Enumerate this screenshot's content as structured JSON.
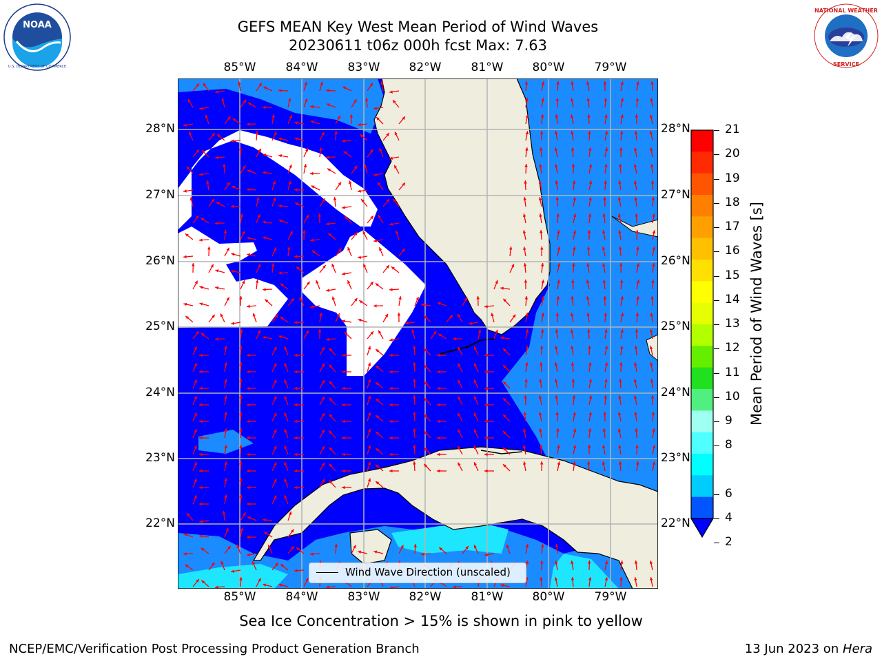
{
  "title_line1": "GEFS MEAN Key West Mean Period of Wind Waves",
  "title_line2": "20230611 t06z 000h fcst   Max: 7.63",
  "logos": {
    "noaa": {
      "text": "NOAA",
      "ring_text": "NATIONAL OCEANIC AND ATMOSPHERIC ADMINISTRATION · U.S. DEPARTMENT OF COMMERCE"
    },
    "nws": {
      "ring_text": "NATIONAL WEATHER SERVICE"
    }
  },
  "map": {
    "lon_labels": [
      "85°W",
      "84°W",
      "83°W",
      "82°W",
      "81°W",
      "80°W",
      "79°W"
    ],
    "lat_labels": [
      "28°N",
      "27°N",
      "26°N",
      "25°N",
      "24°N",
      "23°N",
      "22°N"
    ],
    "lon_range": [
      -86.0,
      -78.3
    ],
    "lat_range": [
      21.0,
      28.8
    ],
    "colors": {
      "land": "#eeedde",
      "no_data": "#ffffff",
      "period_2_4": "#0000ff",
      "period_4_6": "#1a8cff",
      "period_6_8": "#1ee6ff",
      "arrow": "#ff0000",
      "grid": "#b3b3b3",
      "coastline": "#000000"
    },
    "legend_label": "Wind Wave Direction (unscaled)"
  },
  "colorbar": {
    "label": "Mean Period of Wind Waves [s]",
    "ticks": [
      "21",
      "20",
      "19",
      "18",
      "17",
      "16",
      "15",
      "14",
      "13",
      "12",
      "11",
      "10",
      "9",
      "8",
      "6",
      "4",
      "2"
    ],
    "segment_colors": [
      "#ff0000",
      "#ff2a00",
      "#ff5500",
      "#ff7f00",
      "#ffa000",
      "#ffc000",
      "#ffe000",
      "#ffff00",
      "#e6ff00",
      "#b3ff00",
      "#66ee00",
      "#20e020",
      "#50f080",
      "#9ffff0",
      "#50ffff",
      "#00ffff",
      "#00ccff",
      "#0055ff"
    ],
    "underflow_color": "#0000ff"
  },
  "ice_note": "Sea Ice Concentration > 15% is shown in pink to yellow",
  "footer": {
    "left": "NCEP/EMC/Verification Post Processing Product Generation Branch",
    "date": "13 Jun 2023 on ",
    "host": "Hera"
  }
}
